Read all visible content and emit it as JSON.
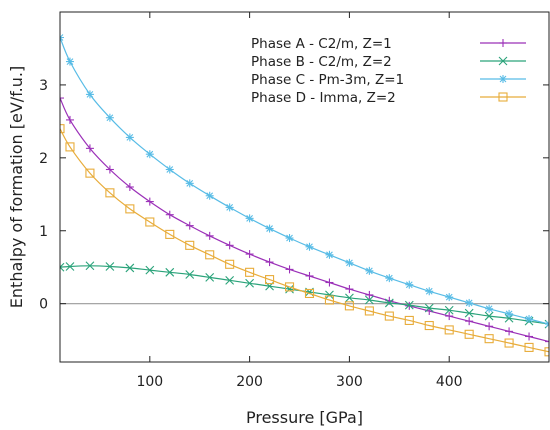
{
  "chart_data": {
    "type": "line",
    "xlabel": "Pressure [GPa]",
    "ylabel": "Enthalpy of formation [eV/f.u.]",
    "xlim": [
      10,
      500
    ],
    "ylim": [
      -0.8,
      4.0
    ],
    "x_ticks": [
      100,
      200,
      300,
      400
    ],
    "x_tick_labels": [
      "100",
      "200",
      "300",
      "400"
    ],
    "y_ticks": [
      0,
      1,
      2,
      3
    ],
    "y_tick_labels": [
      "0",
      "1",
      "2",
      "3"
    ],
    "zero_line": true,
    "grid": false,
    "legend_position": "top-right",
    "series": [
      {
        "name": "Phase A - C2/m,    Z=1",
        "color": "#9b30b8",
        "marker": "plus",
        "x": [
          10,
          20,
          40,
          60,
          80,
          100,
          120,
          140,
          160,
          180,
          200,
          220,
          240,
          260,
          280,
          300,
          320,
          340,
          360,
          380,
          400,
          420,
          440,
          460,
          480,
          500
        ],
        "y": [
          2.82,
          2.52,
          2.13,
          1.84,
          1.6,
          1.4,
          1.22,
          1.07,
          0.93,
          0.8,
          0.68,
          0.57,
          0.47,
          0.38,
          0.29,
          0.2,
          0.12,
          0.04,
          -0.03,
          -0.1,
          -0.17,
          -0.24,
          -0.31,
          -0.38,
          -0.45,
          -0.52
        ]
      },
      {
        "name": "Phase B - C2/m,    Z=2",
        "color": "#2aa37a",
        "marker": "cross",
        "x": [
          10,
          20,
          40,
          60,
          80,
          100,
          120,
          140,
          160,
          180,
          200,
          220,
          240,
          260,
          280,
          300,
          320,
          340,
          360,
          380,
          400,
          420,
          440,
          460,
          480,
          500
        ],
        "y": [
          0.5,
          0.51,
          0.52,
          0.51,
          0.49,
          0.46,
          0.43,
          0.4,
          0.36,
          0.32,
          0.28,
          0.24,
          0.2,
          0.16,
          0.12,
          0.08,
          0.05,
          0.01,
          -0.02,
          -0.06,
          -0.09,
          -0.13,
          -0.17,
          -0.2,
          -0.24,
          -0.28
        ]
      },
      {
        "name": "Phase C - Pm-3m, Z=1",
        "color": "#58bce6",
        "marker": "star",
        "x": [
          10,
          20,
          40,
          60,
          80,
          100,
          120,
          140,
          160,
          180,
          200,
          220,
          240,
          260,
          280,
          300,
          320,
          340,
          360,
          380,
          400,
          420,
          440,
          460,
          480,
          500
        ],
        "y": [
          3.65,
          3.32,
          2.87,
          2.55,
          2.28,
          2.05,
          1.84,
          1.65,
          1.48,
          1.32,
          1.17,
          1.03,
          0.9,
          0.78,
          0.67,
          0.56,
          0.45,
          0.35,
          0.26,
          0.17,
          0.09,
          0.01,
          -0.07,
          -0.14,
          -0.21,
          -0.28
        ]
      },
      {
        "name": "Phase D - Imma,    Z=2",
        "color": "#e8ac3a",
        "marker": "square",
        "x": [
          10,
          20,
          40,
          60,
          80,
          100,
          120,
          140,
          160,
          180,
          200,
          220,
          240,
          260,
          280,
          300,
          320,
          340,
          360,
          380,
          400,
          420,
          440,
          460,
          480,
          500
        ],
        "y": [
          2.4,
          2.15,
          1.79,
          1.52,
          1.3,
          1.12,
          0.95,
          0.8,
          0.67,
          0.54,
          0.43,
          0.33,
          0.23,
          0.14,
          0.05,
          -0.03,
          -0.1,
          -0.17,
          -0.23,
          -0.3,
          -0.36,
          -0.42,
          -0.48,
          -0.54,
          -0.6,
          -0.66
        ]
      }
    ]
  }
}
